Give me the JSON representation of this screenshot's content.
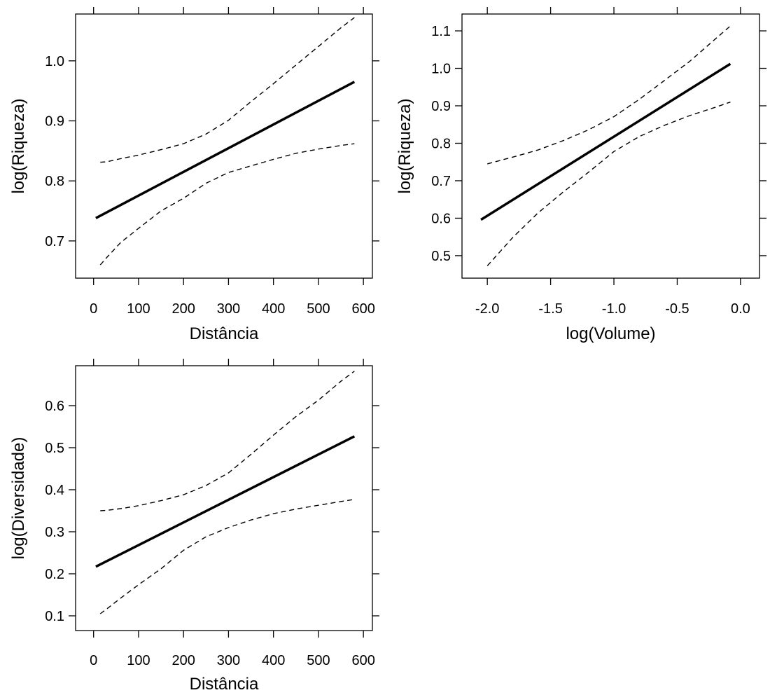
{
  "chart_data": [
    {
      "type": "line",
      "xlabel": "Distância",
      "ylabel": "log(Riqueza)",
      "xlim": [
        -40,
        620
      ],
      "ylim": [
        0.638,
        1.078
      ],
      "xticks": [
        0,
        100,
        200,
        300,
        400,
        500,
        600
      ],
      "xtick_labels": [
        "0",
        "100",
        "200",
        "300",
        "400",
        "500",
        "600"
      ],
      "yticks": [
        0.7,
        0.8,
        0.9,
        1.0
      ],
      "ytick_labels": [
        "0.7",
        "0.8",
        "0.9",
        "1.0"
      ],
      "grid": false,
      "series": [
        {
          "style": "solid",
          "x": [
            5,
            580
          ],
          "y": [
            0.738,
            0.965
          ]
        },
        {
          "style": "dashed",
          "x": [
            15,
            30,
            60,
            100,
            150,
            200,
            250,
            300,
            350,
            400,
            450,
            500,
            550,
            580
          ],
          "y": [
            0.831,
            0.832,
            0.837,
            0.843,
            0.852,
            0.862,
            0.878,
            0.901,
            0.932,
            0.962,
            0.993,
            1.024,
            1.055,
            1.072
          ]
        },
        {
          "style": "dashed",
          "x": [
            15,
            30,
            60,
            100,
            150,
            200,
            250,
            300,
            350,
            400,
            450,
            500,
            550,
            580
          ],
          "y": [
            0.66,
            0.673,
            0.697,
            0.721,
            0.75,
            0.771,
            0.796,
            0.814,
            0.825,
            0.836,
            0.846,
            0.853,
            0.859,
            0.862
          ]
        }
      ]
    },
    {
      "type": "line",
      "xlabel": "log(Volume)",
      "ylabel": "log(Riqueza)",
      "xlim": [
        -2.2,
        0.15
      ],
      "ylim": [
        0.44,
        1.145
      ],
      "xticks": [
        -2.0,
        -1.5,
        -1.0,
        -0.5,
        0.0
      ],
      "xtick_labels": [
        "-2.0",
        "-1.5",
        "-1.0",
        "-0.5",
        "0.0"
      ],
      "yticks": [
        0.5,
        0.6,
        0.7,
        0.8,
        0.9,
        1.0,
        1.1
      ],
      "ytick_labels": [
        "0.5",
        "0.6",
        "0.7",
        "0.8",
        "0.9",
        "1.0",
        "1.1"
      ],
      "grid": false,
      "series": [
        {
          "style": "solid",
          "x": [
            -2.05,
            -0.08
          ],
          "y": [
            0.596,
            1.012
          ]
        },
        {
          "style": "dashed",
          "x": [
            -2.0,
            -1.8,
            -1.6,
            -1.4,
            -1.2,
            -1.0,
            -0.8,
            -0.6,
            -0.4,
            -0.2,
            -0.08
          ],
          "y": [
            0.745,
            0.763,
            0.782,
            0.807,
            0.836,
            0.871,
            0.917,
            0.968,
            1.019,
            1.078,
            1.113
          ]
        },
        {
          "style": "dashed",
          "x": [
            -2.0,
            -1.8,
            -1.6,
            -1.4,
            -1.2,
            -1.0,
            -0.8,
            -0.6,
            -0.4,
            -0.2,
            -0.08
          ],
          "y": [
            0.473,
            0.548,
            0.614,
            0.67,
            0.723,
            0.778,
            0.818,
            0.848,
            0.874,
            0.896,
            0.91
          ]
        }
      ]
    },
    {
      "type": "line",
      "xlabel": "Distância",
      "ylabel": "log(Diversidade)",
      "xlim": [
        -40,
        620
      ],
      "ylim": [
        0.065,
        0.695
      ],
      "xticks": [
        0,
        100,
        200,
        300,
        400,
        500,
        600
      ],
      "xtick_labels": [
        "0",
        "100",
        "200",
        "300",
        "400",
        "500",
        "600"
      ],
      "yticks": [
        0.1,
        0.2,
        0.3,
        0.4,
        0.5,
        0.6
      ],
      "ytick_labels": [
        "0.1",
        "0.2",
        "0.3",
        "0.4",
        "0.5",
        "0.6"
      ],
      "grid": false,
      "series": [
        {
          "style": "solid",
          "x": [
            5,
            580
          ],
          "y": [
            0.217,
            0.527
          ]
        },
        {
          "style": "dashed",
          "x": [
            15,
            30,
            60,
            100,
            150,
            200,
            250,
            300,
            350,
            400,
            450,
            500,
            550,
            580
          ],
          "y": [
            0.35,
            0.351,
            0.355,
            0.362,
            0.374,
            0.388,
            0.41,
            0.44,
            0.484,
            0.53,
            0.574,
            0.613,
            0.658,
            0.682
          ]
        },
        {
          "style": "dashed",
          "x": [
            15,
            30,
            60,
            100,
            150,
            200,
            250,
            300,
            350,
            400,
            450,
            500,
            550,
            580
          ],
          "y": [
            0.105,
            0.117,
            0.142,
            0.174,
            0.212,
            0.256,
            0.288,
            0.31,
            0.328,
            0.343,
            0.354,
            0.363,
            0.372,
            0.377
          ]
        }
      ]
    }
  ]
}
